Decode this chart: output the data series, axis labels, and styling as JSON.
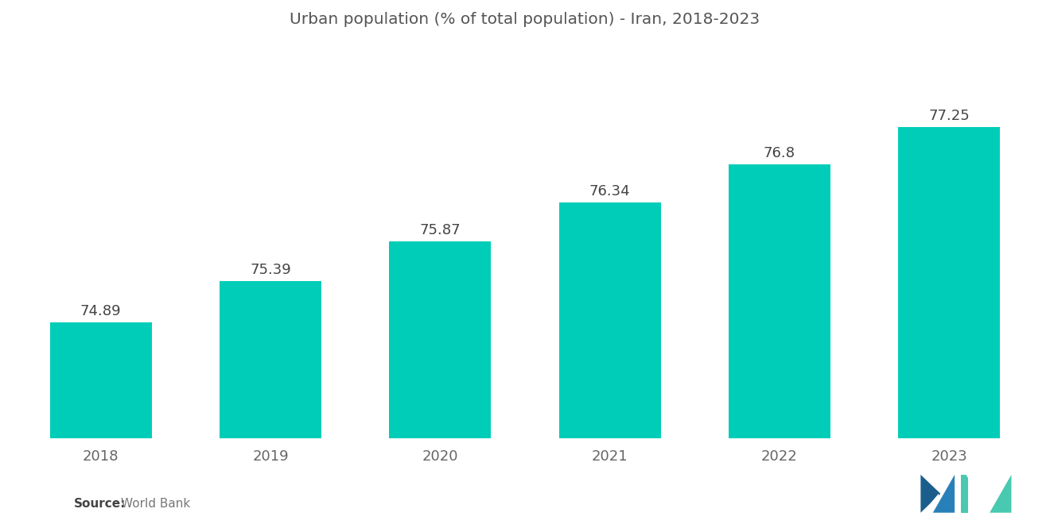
{
  "title": "Urban population (% of total population) - Iran, 2018-2023",
  "categories": [
    "2018",
    "2019",
    "2020",
    "2021",
    "2022",
    "2023"
  ],
  "values": [
    74.89,
    75.39,
    75.87,
    76.34,
    76.8,
    77.25
  ],
  "bar_color": "#00CDB8",
  "background_color": "#ffffff",
  "title_fontsize": 14.5,
  "label_fontsize": 13,
  "tick_fontsize": 13,
  "source_bold": "Source:",
  "source_text": "  World Bank",
  "ylim_min": 73.5,
  "ylim_max": 78.2,
  "bar_width": 0.6,
  "title_color": "#555555",
  "tick_color": "#666666",
  "value_label_color": "#444444",
  "source_color": "#777777",
  "logo_color1": "#1B5E8C",
  "logo_color2": "#2980B9",
  "logo_color3": "#48C9B0"
}
